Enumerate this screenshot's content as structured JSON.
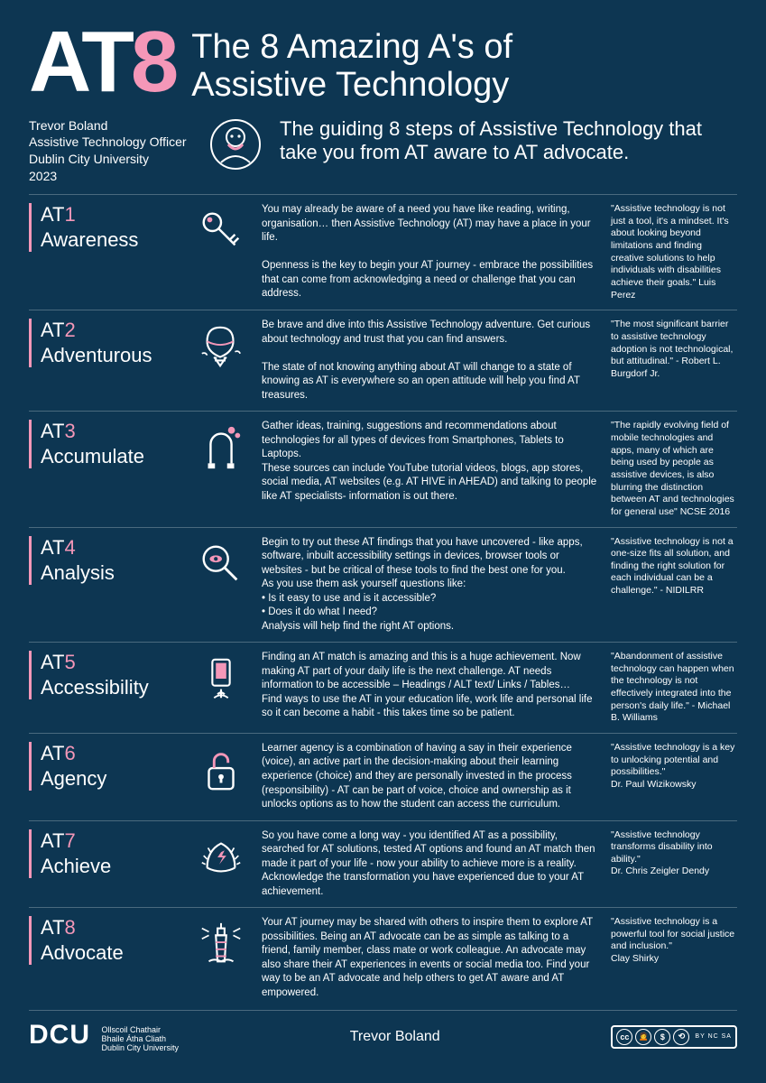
{
  "colors": {
    "bg": "#0d3652",
    "accent": "#f497b8",
    "text": "#ffffff",
    "rule": "#4a6a7e"
  },
  "header": {
    "logo_prefix": "AT",
    "logo_number": "8",
    "title": "The 8 Amazing A's of\nAssistive Technology"
  },
  "byline": {
    "name": "Trevor Boland",
    "role": "Assistive Technology Officer",
    "org": "Dublin City University",
    "year": "2023"
  },
  "intro": "The guiding 8 steps of Assistive Technology that take you from AT aware to AT advocate.",
  "steps": [
    {
      "code": "AT",
      "num": "1",
      "name": "Awareness",
      "icon": "key",
      "body": "You may already be aware of a need you have like reading, writing, organisation… then Assistive Technology (AT) may have a place in your life.\n\nOpenness is the key to begin your AT journey - embrace the possibilities that can come from acknowledging a need or challenge that you can address.",
      "quote": "\"Assistive technology is not just a tool, it's a mindset. It's about looking beyond limitations and finding creative solutions to help individuals with disabilities achieve their goals.\" Luis Perez"
    },
    {
      "code": "AT",
      "num": "2",
      "name": "Adventurous",
      "icon": "balloon",
      "body": "Be brave and dive into this Assistive Technology adventure. Get curious about technology and trust that you can find answers.\n\nThe state of not knowing anything about AT will change to a state of knowing as AT is everywhere so an open attitude will help you find AT treasures.",
      "quote": "\"The most significant barrier to assistive technology adoption is not technological, but attitudinal.\" - Robert L. Burgdorf Jr."
    },
    {
      "code": "AT",
      "num": "3",
      "name": "Accumulate",
      "icon": "magnet",
      "body": "Gather ideas, training, suggestions and recommendations about technologies for all types of devices from Smartphones, Tablets to Laptops.\nThese sources can include YouTube tutorial videos, blogs, app stores, social media, AT websites (e.g. AT HIVE in AHEAD) and talking to people like AT specialists- information is out there.",
      "quote": "\"The rapidly evolving field of mobile technologies and apps, many of which are being used by people as assistive devices, is also blurring the distinction between AT and technologies for general use\" NCSE 2016"
    },
    {
      "code": "AT",
      "num": "4",
      "name": "Analysis",
      "icon": "magnify",
      "body": "Begin to try out these AT findings that you have uncovered - like apps, software, inbuilt accessibility settings in devices, browser tools or websites - but be critical of these tools to find the best one for you.\nAs you use them ask yourself questions like:\n • Is it easy to use and is it accessible?\n • Does it do what I need?\nAnalysis will help find the right AT options.",
      "quote": "\"Assistive technology is not a one-size fits all solution, and finding the right solution for each individual can be a challenge.\" - NIDILRR"
    },
    {
      "code": "AT",
      "num": "5",
      "name": "Accessibility",
      "icon": "touch",
      "body": "Finding an AT match is amazing and this is a huge achievement. Now making AT part of your daily life is the next challenge. AT needs information to be accessible – Headings / ALT text/ Links / Tables…\nFind ways to use the AT in your education life, work life and personal life so it can become a habit - this takes time so be patient.",
      "quote": "\"Abandonment of assistive technology can happen when the technology is not effectively integrated into the person's daily life.\" - Michael B. Williams"
    },
    {
      "code": "AT",
      "num": "6",
      "name": "Agency",
      "icon": "lock",
      "body": "Learner agency is a combination of having a say in their experience (voice), an active part in the decision-making about their learning experience (choice) and they are personally invested in the process (responsibility) - AT can be part of voice, choice and ownership as it unlocks options as to how the student can access the curriculum.",
      "quote": "\"Assistive technology is a key to unlocking potential and possibilities.\"\nDr. Paul Wizikowsky"
    },
    {
      "code": "AT",
      "num": "7",
      "name": "Achieve",
      "icon": "laurel",
      "body": "So you have come a long way - you identified AT as a possibility, searched for AT solutions, tested AT options and found an AT match then made it part of your life - now your ability to achieve more is a reality.\nAcknowledge the transformation you have experienced due to your AT achievement.",
      "quote": "\"Assistive technology transforms disability into ability.\"\nDr. Chris Zeigler Dendy"
    },
    {
      "code": "AT",
      "num": "8",
      "name": "Advocate",
      "icon": "lighthouse",
      "body": "Your AT journey may be shared with others to inspire them to explore AT possibilities. Being an AT advocate can be as simple as talking to a friend, family member, class mate or work colleague. An advocate may also share their AT experiences in events or social media too. Find your way to be an AT advocate and help others to get AT aware and AT empowered.",
      "quote": "\"Assistive technology is a powerful tool for social justice and inclusion.\"\nClay Shirky"
    }
  ],
  "footer": {
    "dcu": "DCU",
    "dcu_sub": "Ollscoil Chathair\nBhaile Átha Cliath\nDublin City University",
    "author": "Trevor Boland",
    "cc_glyphs": [
      "cc",
      "BY",
      "NC",
      "SA"
    ],
    "cc_tags": "BY   NC   SA"
  }
}
